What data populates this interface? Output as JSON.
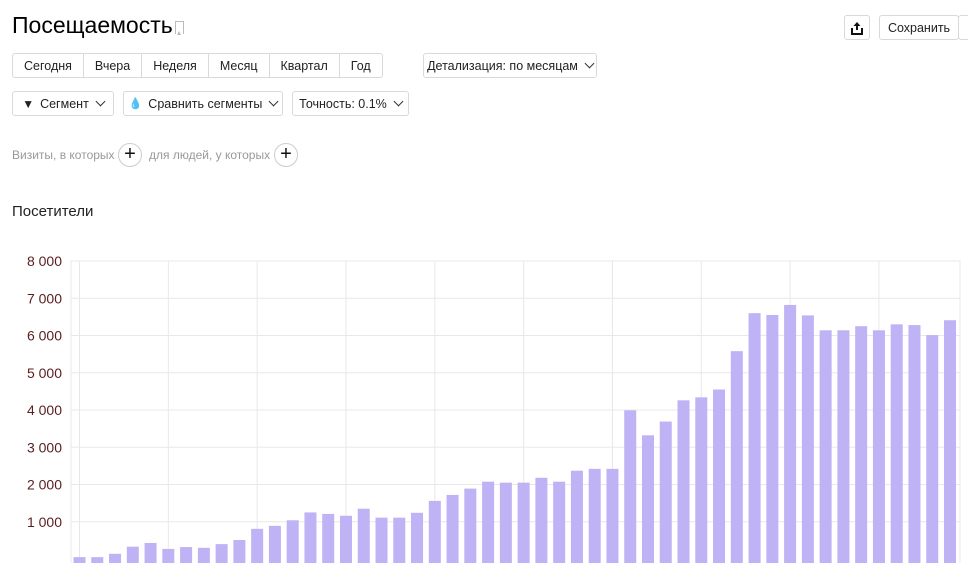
{
  "header": {
    "title": "Посещаемость",
    "share_icon": "share-icon",
    "bookmark_icon": "bookmark-icon",
    "save_label": "Сохранить"
  },
  "periods": [
    "Сегодня",
    "Вчера",
    "Неделя",
    "Месяц",
    "Квартал",
    "Год"
  ],
  "detail_label": "Детализация: по месяцам",
  "filters": {
    "segment": "Сегмент",
    "compare": "Сравнить сегменты",
    "accuracy": "Точность: 0.1%"
  },
  "conditions": {
    "visits": "Визиты, в которых",
    "people": "для людей, у которых"
  },
  "section_title": "Посетители",
  "colors": {
    "bar": "#bfb2f5",
    "axis_label": "#5a1e1e",
    "grid": "#e8e8e8"
  },
  "chart_data": {
    "type": "bar",
    "title": "Посетители",
    "ylim": [
      0,
      8000
    ],
    "yticks": [
      "8 000",
      "7 000",
      "6 000",
      "5 000",
      "4 000",
      "3 000",
      "2 000",
      "1 000"
    ],
    "ytick_values": [
      8000,
      7000,
      6000,
      5000,
      4000,
      3000,
      2000,
      1000
    ],
    "grid": true,
    "values": [
      50,
      50,
      140,
      330,
      430,
      270,
      320,
      300,
      400,
      510,
      810,
      890,
      1040,
      1250,
      1210,
      1160,
      1350,
      1110,
      1110,
      1240,
      1560,
      1720,
      1890,
      2075,
      2050,
      2050,
      2180,
      2075,
      2370,
      2420,
      2420,
      3990,
      3320,
      3690,
      4260,
      4340,
      4550,
      5580,
      6600,
      6550,
      6820,
      6540,
      6140,
      6140,
      6250,
      6140,
      6300,
      6280,
      6010,
      6410
    ]
  }
}
